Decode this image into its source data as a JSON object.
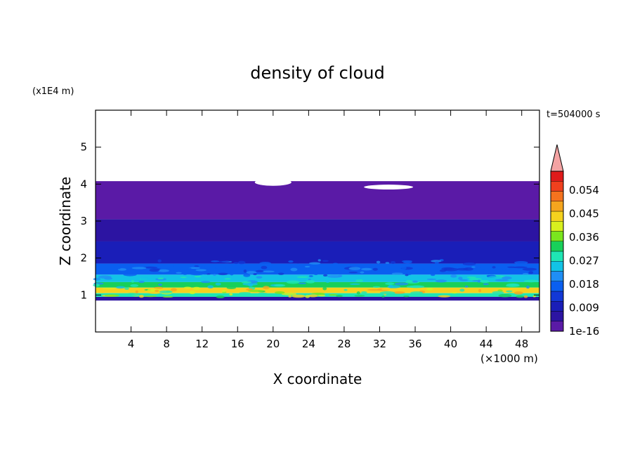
{
  "chart_data": {
    "type": "heatmap",
    "title": "density of cloud",
    "xlabel": "X coordinate",
    "ylabel": "Z coordinate",
    "x_unit_label": "(×1000 m)",
    "y_unit_label": "(x1E4 m)",
    "time_label": "t=504000 s",
    "xlim": [
      0,
      50
    ],
    "ylim": [
      0,
      6
    ],
    "x_ticks": [
      "4",
      "8",
      "12",
      "16",
      "20",
      "24",
      "28",
      "32",
      "36",
      "40",
      "44",
      "48"
    ],
    "y_ticks": [
      "1",
      "2",
      "3",
      "4",
      "5"
    ],
    "colorbar": {
      "labels": [
        "1e-16",
        "0.009",
        "0.018",
        "0.027",
        "0.036",
        "0.045",
        "0.054"
      ],
      "colors": [
        "#5a1aa6",
        "#2c14a2",
        "#1a1eb8",
        "#1238d6",
        "#0a5ff0",
        "#1f8ef5",
        "#12c3e6",
        "#1fe6b4",
        "#18d05a",
        "#7ae61e",
        "#d8f01e",
        "#f5d21e",
        "#f5a51e",
        "#f5731e",
        "#f0401e",
        "#e01a1a"
      ],
      "extend_max_color": "#f4a3a3"
    },
    "layers": [
      {
        "z": [
          3.05,
          4.08
        ],
        "value": "1e-16",
        "color": "#5a1aa6"
      },
      {
        "z": [
          2.45,
          3.05
        ],
        "value": "0.003",
        "color": "#2c14a2"
      },
      {
        "z": [
          1.85,
          2.45
        ],
        "value": "0.007",
        "color": "#1a1eb8"
      },
      {
        "z": [
          1.55,
          1.85
        ],
        "value": "0.012",
        "color": "#0a5ff0"
      },
      {
        "z": [
          1.35,
          1.55
        ],
        "value": "0.021",
        "color": "#12c3e6"
      },
      {
        "z": [
          1.2,
          1.35
        ],
        "value": "0.03",
        "color": "#18d05a"
      },
      {
        "z": [
          1.05,
          1.2
        ],
        "value": "0.042",
        "color": "#f5d21e"
      },
      {
        "z": [
          0.95,
          1.05
        ],
        "value": "0.027",
        "color": "#1fe6b4"
      },
      {
        "z": [
          0.85,
          0.95
        ],
        "value": "0.005",
        "color": "#2c14a2"
      }
    ],
    "grid": false
  }
}
